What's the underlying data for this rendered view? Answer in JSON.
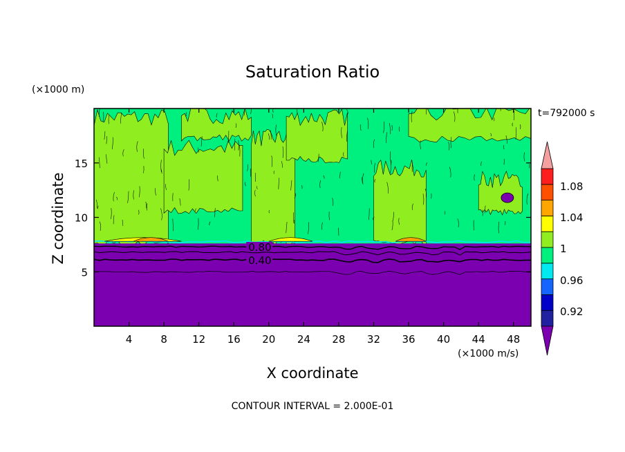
{
  "chart_data": {
    "type": "heatmap",
    "title": "Saturation Ratio",
    "xlabel": "X coordinate",
    "ylabel": "Z coordinate",
    "x_unit": "(×1000 m/s)",
    "y_unit": "(×1000 m)",
    "time_label": "t=792000 s",
    "footer": "CONTOUR INTERVAL = 2.000E-01",
    "xlim": [
      0,
      50
    ],
    "ylim": [
      0,
      20
    ],
    "x_ticks": [
      4,
      8,
      12,
      16,
      20,
      24,
      28,
      32,
      36,
      40,
      44,
      48
    ],
    "y_ticks": [
      5,
      10,
      15
    ],
    "contour_labels": [
      {
        "text": "0.80",
        "x": 17.5,
        "z": 7.3
      },
      {
        "text": "0.40",
        "x": 17.5,
        "z": 6.1
      }
    ],
    "regions": {
      "upper_fill_level": "0.98-1",
      "lower_fill_level": "<0.90",
      "boundary_z": 7.6
    },
    "colorbar": {
      "labels": [
        "1.08",
        "1.04",
        "1",
        "0.96",
        "0.92"
      ],
      "colors": [
        "#7a00b0",
        "#2020a0",
        "#0000c8",
        "#1464ff",
        "#00e8f0",
        "#00f080",
        "#90ee20",
        "#ffff00",
        "#ffa500",
        "#ff5000",
        "#ff1e1e",
        "#f5a0a0"
      ],
      "top_cap_color": "#f5a0a0",
      "bottom_cap_color": "#7a00b0"
    },
    "fill_colors": {
      "green": "#00f080",
      "lime": "#90ee20",
      "purple": "#7a00b0",
      "yellow": "#ffff00",
      "orange": "#ffa500",
      "cyan": "#00e8f0"
    }
  }
}
